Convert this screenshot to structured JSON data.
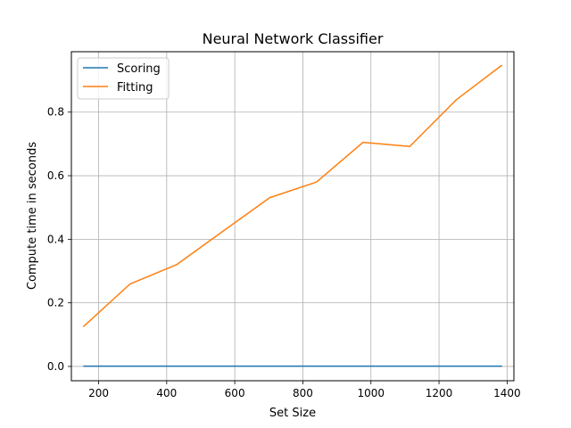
{
  "chart_data": {
    "type": "line",
    "title": "Neural Network Classifier",
    "xlabel": "Set Size",
    "ylabel": "Compute time in seconds",
    "xlim": [
      120,
      1420
    ],
    "ylim": [
      -0.045,
      0.99
    ],
    "xticks": [
      200,
      400,
      600,
      800,
      1000,
      1200,
      1400
    ],
    "yticks": [
      0.0,
      0.2,
      0.4,
      0.6,
      0.8
    ],
    "xtick_labels": [
      "200",
      "400",
      "600",
      "800",
      "1000",
      "1200",
      "1400"
    ],
    "ytick_labels": [
      "0.0",
      "0.2",
      "0.4",
      "0.6",
      "0.8"
    ],
    "grid": true,
    "legend_position": "upper-left",
    "x": [
      155,
      292,
      429,
      566,
      703,
      840,
      977,
      1114,
      1251,
      1385
    ],
    "series": [
      {
        "name": "Scoring",
        "color": "#1f77b4",
        "values": [
          0.001,
          0.001,
          0.001,
          0.001,
          0.001,
          0.001,
          0.001,
          0.001,
          0.001,
          0.001
        ]
      },
      {
        "name": "Fitting",
        "color": "#ff7f0e",
        "values": [
          0.125,
          0.259,
          0.32,
          0.426,
          0.531,
          0.58,
          0.705,
          0.692,
          0.839,
          0.948
        ]
      }
    ]
  }
}
